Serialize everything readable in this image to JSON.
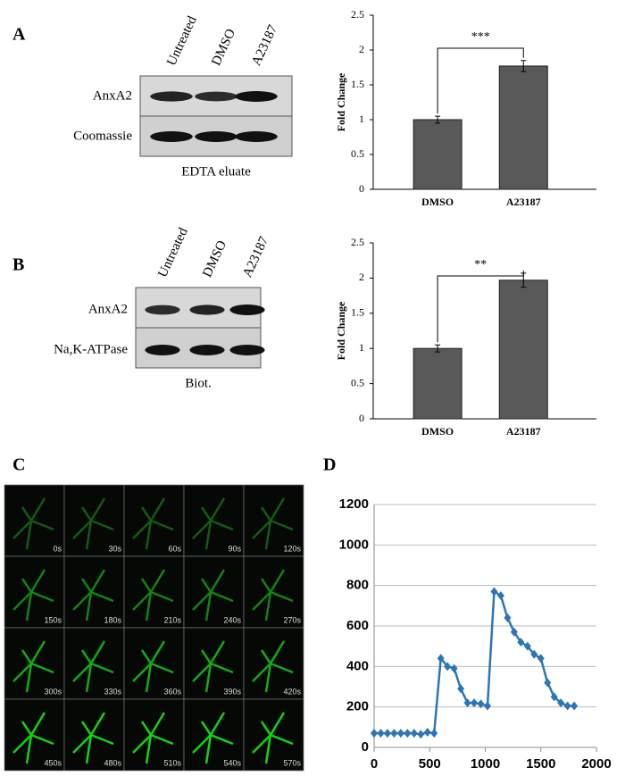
{
  "panel_labels": [
    "A",
    "B",
    "C",
    "D"
  ],
  "blots": [
    {
      "lanes": [
        "Untreated",
        "DMSO",
        "A23187"
      ],
      "rows": [
        "AnxA2",
        "Coomassie"
      ],
      "caption": "EDTA eluate"
    },
    {
      "lanes": [
        "Untreated",
        "DMSO",
        "A23187"
      ],
      "rows": [
        "AnxA2",
        "Na,K-ATPase"
      ],
      "caption": "Biot."
    }
  ],
  "timelapse": {
    "labels": [
      "0s",
      "30s",
      "60s",
      "90s",
      "120s",
      "150s",
      "180s",
      "210s",
      "240s",
      "270s",
      "300s",
      "330s",
      "360s",
      "390s",
      "420s",
      "450s",
      "480s",
      "510s",
      "540s",
      "570s"
    ]
  },
  "chart_data": [
    {
      "type": "bar",
      "y_label": "Fold Change",
      "categories": [
        "DMSO",
        "A23187"
      ],
      "values": [
        1,
        1.77
      ],
      "errors": [
        0.05,
        0.08
      ],
      "color": "#595959",
      "ylim": [
        0,
        2.5
      ],
      "yticks": [
        0,
        0.5,
        1,
        1.5,
        2,
        2.5
      ],
      "annotation": "***"
    },
    {
      "type": "bar",
      "y_label": "Fold Change",
      "categories": [
        "DMSO",
        "A23187"
      ],
      "values": [
        1,
        1.97
      ],
      "errors": [
        0.05,
        0.1
      ],
      "color": "#595959",
      "ylim": [
        0,
        2.5
      ],
      "yticks": [
        0,
        0.5,
        1,
        1.5,
        2,
        2.5
      ],
      "annotation": "**"
    },
    {
      "type": "line",
      "x": [
        0,
        60,
        120,
        180,
        240,
        300,
        360,
        420,
        480,
        540,
        600,
        660,
        720,
        780,
        840,
        900,
        960,
        1020,
        1080,
        1140,
        1200,
        1260,
        1320,
        1380,
        1440,
        1500,
        1560,
        1620,
        1680,
        1740,
        1800
      ],
      "values": [
        70,
        70,
        70,
        70,
        70,
        70,
        70,
        65,
        75,
        70,
        440,
        400,
        390,
        290,
        220,
        220,
        215,
        205,
        770,
        750,
        640,
        570,
        520,
        500,
        460,
        440,
        320,
        250,
        220,
        205,
        205
      ],
      "color": "#2e75b6",
      "xlim": [
        0,
        2000
      ],
      "xticks": [
        0,
        500,
        1000,
        1500,
        2000
      ],
      "ylim": [
        0,
        1200
      ],
      "yticks": [
        0,
        200,
        400,
        600,
        800,
        1000,
        1200
      ],
      "grid": true
    }
  ]
}
